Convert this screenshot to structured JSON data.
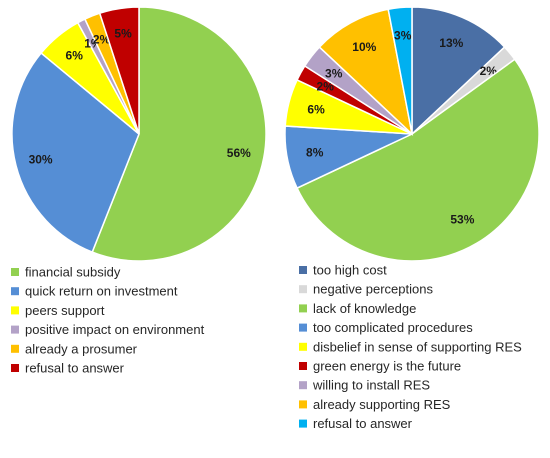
{
  "chart_data": [
    {
      "type": "pie",
      "title": "",
      "slices": [
        {
          "label": "financial subsidy",
          "value": 56,
          "value_label": "56%",
          "color": "#92D050"
        },
        {
          "label": "quick return on investment",
          "value": 30,
          "value_label": "30%",
          "color": "#558ED5"
        },
        {
          "label": "peers support",
          "value": 6,
          "value_label": "6%",
          "color": "#FFFF00"
        },
        {
          "label": "positive impact on environment",
          "value": 1,
          "value_label": "1%",
          "color": "#B3A2C7"
        },
        {
          "label": "already a prosumer",
          "value": 2,
          "value_label": "2%",
          "color": "#FFC000"
        },
        {
          "label": "refusal to answer",
          "value": 5,
          "value_label": "5%",
          "color": "#C00000"
        }
      ],
      "legend_position": "bottom"
    },
    {
      "type": "pie",
      "title": "",
      "slices": [
        {
          "label": "too high cost",
          "value": 13,
          "value_label": "13%",
          "color": "#4A6FA5"
        },
        {
          "label": "negative perceptions",
          "value": 2,
          "value_label": "2%",
          "color": "#D9D9D9"
        },
        {
          "label": "lack of knowledge",
          "value": 53,
          "value_label": "53%",
          "color": "#92D050"
        },
        {
          "label": "too complicated procedures",
          "value": 8,
          "value_label": "8%",
          "color": "#558ED5"
        },
        {
          "label": "disbelief in sense of supporting RES",
          "value": 6,
          "value_label": "6%",
          "color": "#FFFF00"
        },
        {
          "label": "green energy is the future",
          "value": 2,
          "value_label": "2%",
          "color": "#C00000"
        },
        {
          "label": "willing to install RES",
          "value": 3,
          "value_label": "3%",
          "color": "#B3A2C7"
        },
        {
          "label": "already supporting RES",
          "value": 10,
          "value_label": "10%",
          "color": "#FFC000"
        },
        {
          "label": "refusal to answer",
          "value": 3,
          "value_label": "3%",
          "color": "#00B0F0"
        }
      ],
      "legend_position": "bottom"
    }
  ]
}
